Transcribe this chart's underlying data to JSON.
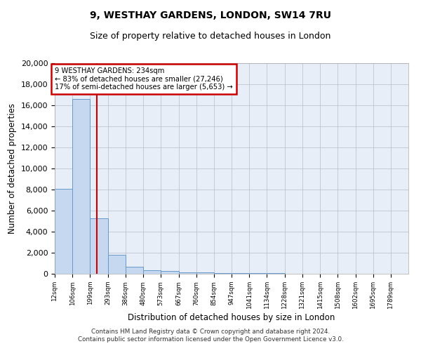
{
  "title1": "9, WESTHAY GARDENS, LONDON, SW14 7RU",
  "title2": "Size of property relative to detached houses in London",
  "xlabel": "Distribution of detached houses by size in London",
  "ylabel": "Number of detached properties",
  "annotation_line1": "9 WESTHAY GARDENS: 234sqm",
  "annotation_line2": "← 83% of detached houses are smaller (27,246)",
  "annotation_line3": "17% of semi-detached houses are larger (5,653) →",
  "footer1": "Contains HM Land Registry data © Crown copyright and database right 2024.",
  "footer2": "Contains public sector information licensed under the Open Government Licence v3.0.",
  "bar_edges": [
    12,
    106,
    199,
    293,
    386,
    480,
    573,
    667,
    760,
    854,
    947,
    1041,
    1134,
    1228,
    1321,
    1415,
    1508,
    1602,
    1695,
    1789,
    1882
  ],
  "bar_heights": [
    8100,
    16600,
    5300,
    1800,
    700,
    350,
    250,
    160,
    110,
    80,
    60,
    45,
    35,
    25,
    20,
    15,
    10,
    8,
    6,
    5
  ],
  "bar_color": "#c5d8f0",
  "bar_edge_color": "#6699cc",
  "red_line_x": 234,
  "ylim": [
    0,
    20000
  ],
  "yticks": [
    0,
    2000,
    4000,
    6000,
    8000,
    10000,
    12000,
    14000,
    16000,
    18000,
    20000
  ],
  "background_color": "#e8eef8",
  "annotation_box_color": "#ffffff",
  "annotation_border_color": "#cc0000",
  "red_line_color": "#cc0000",
  "grid_color": "#bbbbcc"
}
